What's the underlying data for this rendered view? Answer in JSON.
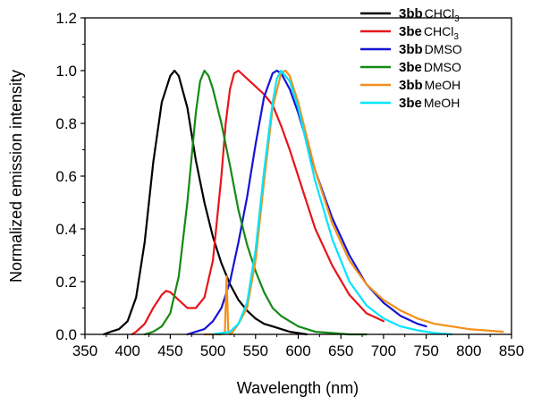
{
  "chart_data": {
    "type": "line",
    "title": "",
    "xlabel": "Wavelength (nm)",
    "ylabel": "Normalized emission intensity",
    "xlim": [
      350,
      850
    ],
    "ylim": [
      0.0,
      1.2
    ],
    "xticks": [
      350,
      400,
      450,
      500,
      550,
      600,
      650,
      700,
      750,
      800,
      850
    ],
    "yticks": [
      0.0,
      0.2,
      0.4,
      0.6,
      0.8,
      1.0,
      1.2
    ],
    "xtick_labels": [
      "350",
      "400",
      "450",
      "500",
      "550",
      "600",
      "650",
      "700",
      "750",
      "800",
      "850"
    ],
    "ytick_labels": [
      "0.0",
      "0.2",
      "0.4",
      "0.6",
      "0.8",
      "1.0",
      "1.2"
    ],
    "legend_position": "top-right",
    "series": [
      {
        "name": "3bb CHCl3",
        "compound": "3bb",
        "solvent": "CHCl",
        "solvent_sub": "3",
        "color": "#000000",
        "x": [
          372,
          380,
          390,
          400,
          410,
          420,
          430,
          440,
          450,
          455,
          460,
          470,
          480,
          490,
          500,
          510,
          520,
          530,
          540,
          550,
          560,
          570,
          580,
          590,
          600,
          610
        ],
        "y": [
          0.0,
          0.01,
          0.02,
          0.05,
          0.14,
          0.35,
          0.65,
          0.88,
          0.98,
          1.0,
          0.98,
          0.86,
          0.66,
          0.5,
          0.37,
          0.27,
          0.19,
          0.13,
          0.09,
          0.06,
          0.04,
          0.03,
          0.02,
          0.01,
          0.005,
          0.0
        ]
      },
      {
        "name": "3be CHCl3",
        "compound": "3be",
        "solvent": "CHCl",
        "solvent_sub": "3",
        "color": "#e8141b",
        "x": [
          405,
          410,
          420,
          430,
          440,
          445,
          450,
          460,
          470,
          480,
          490,
          500,
          510,
          515,
          520,
          525,
          530,
          540,
          550,
          560,
          570,
          580,
          590,
          600,
          610,
          620,
          640,
          660,
          680,
          700
        ],
        "y": [
          0.0,
          0.01,
          0.04,
          0.1,
          0.15,
          0.165,
          0.16,
          0.13,
          0.1,
          0.1,
          0.14,
          0.28,
          0.6,
          0.8,
          0.93,
          0.99,
          1.0,
          0.97,
          0.94,
          0.91,
          0.87,
          0.79,
          0.7,
          0.6,
          0.5,
          0.4,
          0.26,
          0.15,
          0.08,
          0.05
        ]
      },
      {
        "name": "3bb DMSO",
        "compound": "3bb",
        "solvent": "DMSO",
        "solvent_sub": "",
        "color": "#1414d6",
        "x": [
          470,
          480,
          490,
          500,
          510,
          520,
          530,
          540,
          550,
          560,
          570,
          575,
          580,
          590,
          600,
          610,
          620,
          640,
          660,
          680,
          700,
          720,
          740,
          750
        ],
        "y": [
          0.0,
          0.01,
          0.02,
          0.05,
          0.1,
          0.2,
          0.35,
          0.52,
          0.72,
          0.9,
          0.99,
          1.0,
          0.99,
          0.93,
          0.84,
          0.73,
          0.62,
          0.44,
          0.3,
          0.19,
          0.12,
          0.07,
          0.04,
          0.03
        ]
      },
      {
        "name": "3be DMSO",
        "compound": "3be",
        "solvent": "DMSO",
        "solvent_sub": "",
        "color": "#148a14",
        "x": [
          420,
          430,
          440,
          450,
          460,
          470,
          480,
          485,
          490,
          495,
          500,
          510,
          520,
          530,
          540,
          550,
          560,
          570,
          580,
          590,
          600,
          620,
          640,
          660,
          680
        ],
        "y": [
          0.0,
          0.01,
          0.03,
          0.08,
          0.22,
          0.5,
          0.84,
          0.96,
          1.0,
          0.98,
          0.93,
          0.8,
          0.64,
          0.47,
          0.34,
          0.24,
          0.16,
          0.1,
          0.07,
          0.05,
          0.03,
          0.01,
          0.005,
          0.0,
          0.0
        ]
      },
      {
        "name": "3bb MeOH",
        "compound": "3bb",
        "solvent": "MeOH",
        "solvent_sub": "",
        "color": "#f39019",
        "x": [
          490,
          510,
          514,
          516,
          518,
          521,
          530,
          540,
          550,
          560,
          570,
          580,
          585,
          590,
          600,
          610,
          620,
          640,
          660,
          680,
          700,
          720,
          740,
          760,
          780,
          800,
          820,
          840
        ],
        "y": [
          0.0,
          0.0,
          0.01,
          0.22,
          0.01,
          0.0,
          0.04,
          0.1,
          0.28,
          0.58,
          0.86,
          0.99,
          1.0,
          0.98,
          0.88,
          0.75,
          0.62,
          0.42,
          0.28,
          0.19,
          0.13,
          0.09,
          0.06,
          0.04,
          0.03,
          0.02,
          0.015,
          0.01
        ]
      },
      {
        "name": "3be MeOH",
        "compound": "3be",
        "solvent": "MeOH",
        "solvent_sub": "",
        "color": "#00e5ff",
        "x": [
          500,
          520,
          530,
          540,
          550,
          560,
          570,
          575,
          580,
          590,
          600,
          610,
          620,
          640,
          660,
          680,
          700,
          720,
          740,
          760,
          780
        ],
        "y": [
          0.0,
          0.01,
          0.04,
          0.12,
          0.32,
          0.62,
          0.88,
          0.97,
          1.0,
          0.96,
          0.86,
          0.72,
          0.58,
          0.36,
          0.2,
          0.11,
          0.06,
          0.03,
          0.015,
          0.005,
          0.0
        ]
      }
    ]
  }
}
